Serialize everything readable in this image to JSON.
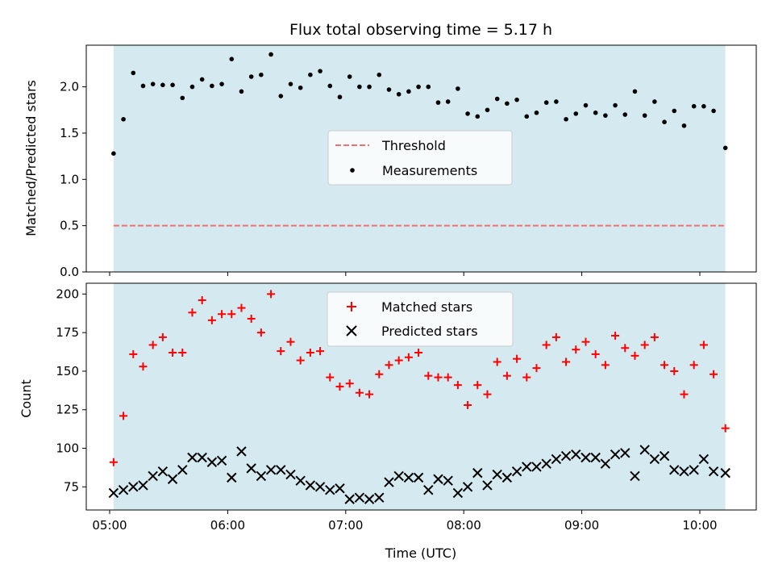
{
  "chart_data": [
    {
      "type": "scatter",
      "panel": "top",
      "title": "Flux total observing time = 5.17 h",
      "xlabel": "",
      "ylabel": "Matched/Predicted stars",
      "ylim": [
        0,
        2.45
      ],
      "yticks": [
        "0.0",
        "0.5",
        "1.0",
        "1.5",
        "2.0"
      ],
      "shaded_span": [
        "05:02",
        "10:13"
      ],
      "shade_color": "#d4eaf0",
      "legend": {
        "placement": "center-right",
        "entries": [
          "Threshold",
          "Measurements"
        ]
      },
      "series": [
        {
          "name": "Threshold",
          "style": "dashed-line",
          "color": "#f07070",
          "x": [
            "05:02",
            "10:13"
          ],
          "y": [
            0.5,
            0.5
          ]
        },
        {
          "name": "Measurements",
          "style": "dots",
          "color": "#000000",
          "x": [
            "05:02",
            "05:07",
            "05:12",
            "05:17",
            "05:22",
            "05:27",
            "05:32",
            "05:37",
            "05:42",
            "05:47",
            "05:52",
            "05:57",
            "06:02",
            "06:07",
            "06:12",
            "06:17",
            "06:22",
            "06:27",
            "06:32",
            "06:37",
            "06:42",
            "06:47",
            "06:52",
            "06:57",
            "07:02",
            "07:07",
            "07:12",
            "07:17",
            "07:22",
            "07:27",
            "07:32",
            "07:37",
            "07:42",
            "07:47",
            "07:52",
            "07:57",
            "08:02",
            "08:07",
            "08:12",
            "08:17",
            "08:22",
            "08:27",
            "08:32",
            "08:37",
            "08:42",
            "08:47",
            "08:52",
            "08:57",
            "09:02",
            "09:07",
            "09:12",
            "09:17",
            "09:22",
            "09:27",
            "09:32",
            "09:37",
            "09:42",
            "09:47",
            "09:52",
            "09:57",
            "10:02",
            "10:07",
            "10:13"
          ],
          "y": [
            1.28,
            1.65,
            2.15,
            2.01,
            2.03,
            2.02,
            2.02,
            1.88,
            2.0,
            2.08,
            2.01,
            2.03,
            2.3,
            1.95,
            2.11,
            2.13,
            2.35,
            1.9,
            2.03,
            1.99,
            2.13,
            2.17,
            2.01,
            1.89,
            2.11,
            2.0,
            2.0,
            2.13,
            1.97,
            1.92,
            1.95,
            2.0,
            2.0,
            1.83,
            1.84,
            1.98,
            1.71,
            1.68,
            1.75,
            1.87,
            1.82,
            1.86,
            1.68,
            1.72,
            1.83,
            1.84,
            1.65,
            1.71,
            1.8,
            1.72,
            1.69,
            1.8,
            1.7,
            1.95,
            1.69,
            1.84,
            1.62,
            1.74,
            1.58,
            1.79,
            1.79,
            1.74,
            1.34
          ]
        }
      ]
    },
    {
      "type": "scatter",
      "panel": "bottom",
      "title": "",
      "xlabel": "Time (UTC)",
      "ylabel": "Count",
      "ylim": [
        60,
        207
      ],
      "yticks": [
        "75",
        "100",
        "125",
        "150",
        "175",
        "200"
      ],
      "xticks": [
        "05:00",
        "06:00",
        "07:00",
        "08:00",
        "09:00",
        "10:00"
      ],
      "shaded_span": [
        "05:02",
        "10:13"
      ],
      "shade_color": "#d4eaf0",
      "legend": {
        "placement": "top-center",
        "entries": [
          "Matched stars",
          "Predicted stars"
        ]
      },
      "series": [
        {
          "name": "Matched stars",
          "marker": "+",
          "color": "#ff0000",
          "x": [
            "05:02",
            "05:07",
            "05:12",
            "05:17",
            "05:22",
            "05:27",
            "05:32",
            "05:37",
            "05:42",
            "05:47",
            "05:52",
            "05:57",
            "06:02",
            "06:07",
            "06:12",
            "06:17",
            "06:22",
            "06:27",
            "06:32",
            "06:37",
            "06:42",
            "06:47",
            "06:52",
            "06:57",
            "07:02",
            "07:07",
            "07:12",
            "07:17",
            "07:22",
            "07:27",
            "07:32",
            "07:37",
            "07:42",
            "07:47",
            "07:52",
            "07:57",
            "08:02",
            "08:07",
            "08:12",
            "08:17",
            "08:22",
            "08:27",
            "08:32",
            "08:37",
            "08:42",
            "08:47",
            "08:52",
            "08:57",
            "09:02",
            "09:07",
            "09:12",
            "09:17",
            "09:22",
            "09:27",
            "09:32",
            "09:37",
            "09:42",
            "09:47",
            "09:52",
            "09:57",
            "10:02",
            "10:07",
            "10:13"
          ],
          "y": [
            91,
            121,
            161,
            153,
            167,
            172,
            162,
            162,
            188,
            196,
            183,
            187,
            187,
            191,
            184,
            175,
            200,
            163,
            169,
            157,
            162,
            163,
            146,
            140,
            142,
            136,
            135,
            148,
            154,
            157,
            159,
            162,
            147,
            146,
            146,
            141,
            128,
            141,
            135,
            156,
            147,
            158,
            146,
            152,
            167,
            172,
            156,
            164,
            169,
            161,
            154,
            173,
            165,
            160,
            167,
            172,
            154,
            150,
            135,
            154,
            167,
            148,
            113
          ]
        },
        {
          "name": "Predicted stars",
          "marker": "x",
          "color": "#000000",
          "x": [
            "05:02",
            "05:07",
            "05:12",
            "05:17",
            "05:22",
            "05:27",
            "05:32",
            "05:37",
            "05:42",
            "05:47",
            "05:52",
            "05:57",
            "06:02",
            "06:07",
            "06:12",
            "06:17",
            "06:22",
            "06:27",
            "06:32",
            "06:37",
            "06:42",
            "06:47",
            "06:52",
            "06:57",
            "07:02",
            "07:07",
            "07:12",
            "07:17",
            "07:22",
            "07:27",
            "07:32",
            "07:37",
            "07:42",
            "07:47",
            "07:52",
            "07:57",
            "08:02",
            "08:07",
            "08:12",
            "08:17",
            "08:22",
            "08:27",
            "08:32",
            "08:37",
            "08:42",
            "08:47",
            "08:52",
            "08:57",
            "09:02",
            "09:07",
            "09:12",
            "09:17",
            "09:22",
            "09:27",
            "09:32",
            "09:37",
            "09:42",
            "09:47",
            "09:52",
            "09:57",
            "10:02",
            "10:07",
            "10:13"
          ],
          "y": [
            71,
            73,
            75,
            76,
            82,
            85,
            80,
            86,
            94,
            94,
            91,
            92,
            81,
            98,
            87,
            82,
            86,
            86,
            83,
            79,
            76,
            75,
            73,
            74,
            67,
            68,
            67,
            68,
            78,
            82,
            81,
            81,
            73,
            80,
            79,
            71,
            75,
            84,
            76,
            83,
            81,
            85,
            88,
            88,
            90,
            93,
            95,
            96,
            94,
            94,
            90,
            96,
            97,
            82,
            99,
            93,
            95,
            86,
            85,
            86,
            93,
            85,
            84
          ]
        }
      ]
    }
  ]
}
